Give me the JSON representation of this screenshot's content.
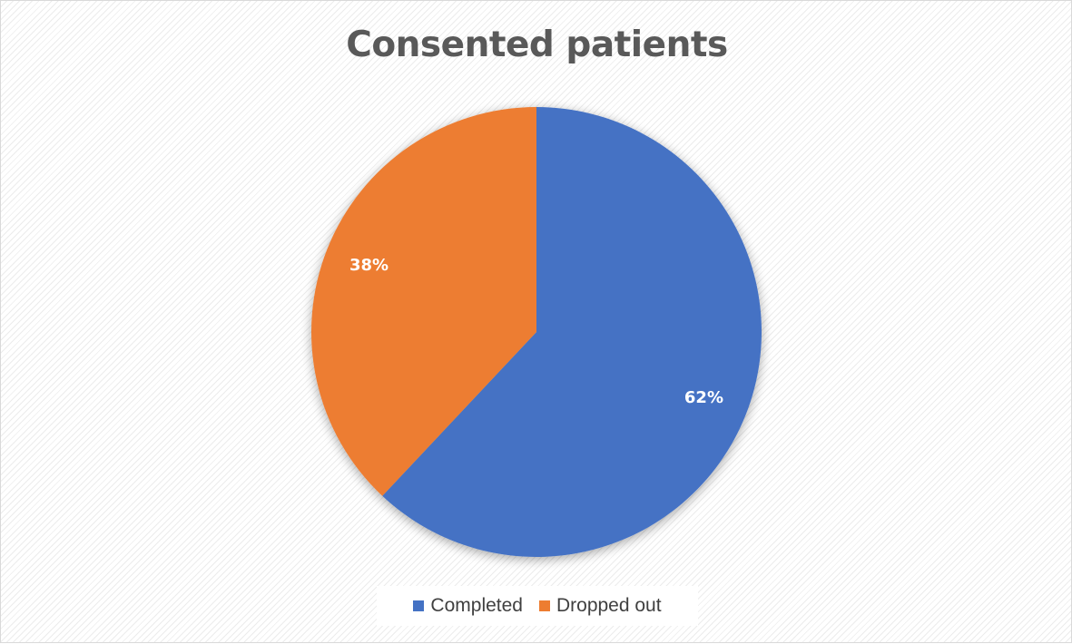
{
  "chart_data": {
    "type": "pie",
    "title": "Consented patients",
    "slices": [
      {
        "label": "Completed",
        "value": 62,
        "value_label": "62%",
        "color": "#4472c4"
      },
      {
        "label": "Dropped out",
        "value": 38,
        "value_label": "38%",
        "color": "#ed7d31"
      }
    ],
    "legend_position": "bottom"
  }
}
